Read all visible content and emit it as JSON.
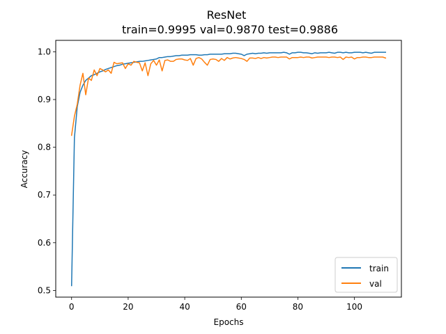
{
  "chart_data": {
    "type": "line",
    "title": "ResNet",
    "subtitle": "train=0.9995 val=0.9870 test=0.9886",
    "xlabel": "Epochs",
    "ylabel": "Accuracy",
    "xlim": [
      -5.6,
      116.6
    ],
    "ylim": [
      0.486,
      1.024
    ],
    "xticks": [
      0,
      20,
      40,
      60,
      80,
      100
    ],
    "yticks": [
      0.5,
      0.6,
      0.7,
      0.8,
      0.9,
      1.0
    ],
    "ytick_labels": [
      "0.5",
      "0.6",
      "0.7",
      "0.8",
      "0.9",
      "1.0"
    ],
    "grid": false,
    "legend": "lower-right",
    "series": [
      {
        "name": "train",
        "color": "#1f77b4",
        "values": [
          0.51,
          0.82,
          0.885,
          0.915,
          0.93,
          0.94,
          0.945,
          0.95,
          0.952,
          0.955,
          0.958,
          0.96,
          0.963,
          0.965,
          0.967,
          0.969,
          0.971,
          0.972,
          0.974,
          0.975,
          0.976,
          0.977,
          0.978,
          0.979,
          0.98,
          0.98,
          0.981,
          0.982,
          0.983,
          0.984,
          0.985,
          0.988,
          0.988,
          0.989,
          0.99,
          0.99,
          0.991,
          0.992,
          0.992,
          0.993,
          0.993,
          0.993,
          0.994,
          0.994,
          0.994,
          0.993,
          0.993,
          0.994,
          0.994,
          0.995,
          0.995,
          0.995,
          0.995,
          0.995,
          0.996,
          0.996,
          0.996,
          0.997,
          0.997,
          0.996,
          0.995,
          0.992,
          0.995,
          0.996,
          0.997,
          0.996,
          0.997,
          0.997,
          0.998,
          0.997,
          0.998,
          0.998,
          0.998,
          0.998,
          0.998,
          0.999,
          0.998,
          0.995,
          0.998,
          0.998,
          0.999,
          0.999,
          0.998,
          0.998,
          0.997,
          0.996,
          0.998,
          0.997,
          0.998,
          0.998,
          0.998,
          0.999,
          0.998,
          0.997,
          0.999,
          0.999,
          0.998,
          0.999,
          0.998,
          0.998,
          0.999,
          0.999,
          0.999,
          0.998,
          0.999,
          0.998,
          0.997,
          0.999,
          0.999,
          0.999,
          0.999,
          0.999
        ]
      },
      {
        "name": "val",
        "color": "#ff7f0e",
        "values": [
          0.825,
          0.865,
          0.89,
          0.93,
          0.955,
          0.91,
          0.945,
          0.94,
          0.962,
          0.95,
          0.965,
          0.962,
          0.958,
          0.962,
          0.955,
          0.978,
          0.975,
          0.976,
          0.977,
          0.965,
          0.975,
          0.972,
          0.98,
          0.978,
          0.977,
          0.96,
          0.977,
          0.95,
          0.975,
          0.982,
          0.972,
          0.983,
          0.96,
          0.982,
          0.983,
          0.98,
          0.98,
          0.984,
          0.985,
          0.985,
          0.983,
          0.982,
          0.986,
          0.972,
          0.986,
          0.988,
          0.985,
          0.978,
          0.972,
          0.984,
          0.985,
          0.984,
          0.98,
          0.986,
          0.982,
          0.988,
          0.985,
          0.987,
          0.988,
          0.987,
          0.986,
          0.984,
          0.98,
          0.987,
          0.987,
          0.986,
          0.988,
          0.986,
          0.988,
          0.987,
          0.988,
          0.989,
          0.989,
          0.988,
          0.989,
          0.989,
          0.989,
          0.985,
          0.988,
          0.988,
          0.988,
          0.989,
          0.988,
          0.989,
          0.989,
          0.987,
          0.988,
          0.989,
          0.989,
          0.989,
          0.989,
          0.988,
          0.989,
          0.989,
          0.988,
          0.989,
          0.984,
          0.989,
          0.988,
          0.989,
          0.985,
          0.988,
          0.988,
          0.989,
          0.989,
          0.988,
          0.988,
          0.989,
          0.989,
          0.989,
          0.989,
          0.987
        ]
      }
    ]
  }
}
